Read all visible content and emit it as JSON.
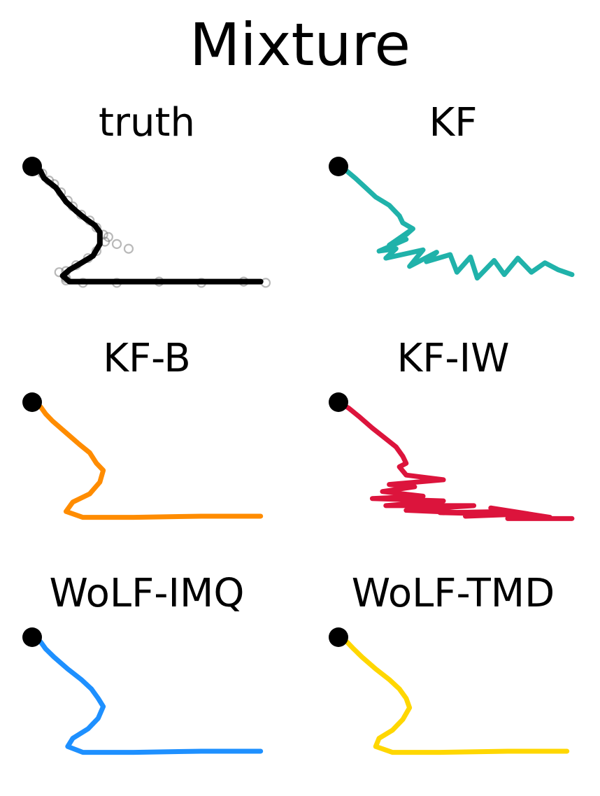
{
  "figure": {
    "title": "Mixture"
  },
  "chart_data": {
    "type": "line",
    "title": "Mixture",
    "axes_visible": false,
    "panels": [
      {
        "title": "truth",
        "color": "#000000",
        "observations_color": "#808080",
        "path": [
          [
            0,
            0
          ],
          [
            0.05,
            -0.04
          ],
          [
            0.07,
            -0.1
          ],
          [
            0.14,
            -0.18
          ],
          [
            0.2,
            -0.3
          ],
          [
            0.26,
            -0.38
          ],
          [
            0.32,
            -0.45
          ],
          [
            0.37,
            -0.5
          ],
          [
            0.4,
            -0.56
          ],
          [
            0.4,
            -0.66
          ],
          [
            0.36,
            -0.76
          ],
          [
            0.28,
            -0.83
          ],
          [
            0.22,
            -0.88
          ],
          [
            0.18,
            -0.93
          ],
          [
            0.22,
            -0.98
          ],
          [
            0.35,
            -0.98
          ],
          [
            0.6,
            -0.98
          ],
          [
            0.9,
            -0.98
          ],
          [
            1.2,
            -0.98
          ],
          [
            1.35,
            -0.98
          ]
        ],
        "observations": [
          [
            0.03,
            -0.02
          ],
          [
            0.06,
            -0.06
          ],
          [
            0.1,
            -0.12
          ],
          [
            0.13,
            -0.15
          ],
          [
            0.17,
            -0.22
          ],
          [
            0.21,
            -0.29
          ],
          [
            0.24,
            -0.34
          ],
          [
            0.29,
            -0.41
          ],
          [
            0.34,
            -0.46
          ],
          [
            0.38,
            -0.52
          ],
          [
            0.42,
            -0.58
          ],
          [
            0.43,
            -0.64
          ],
          [
            0.38,
            -0.72
          ],
          [
            0.33,
            -0.78
          ],
          [
            0.26,
            -0.84
          ],
          [
            0.2,
            -0.89
          ],
          [
            0.2,
            -0.95
          ],
          [
            0.3,
            -0.99
          ],
          [
            0.5,
            -0.99
          ],
          [
            0.75,
            -0.98
          ],
          [
            1.0,
            -0.99
          ],
          [
            1.25,
            -0.98
          ],
          [
            1.38,
            -0.99
          ],
          [
            0.5,
            -0.66
          ],
          [
            0.57,
            -0.7
          ],
          [
            0.16,
            -0.9
          ],
          [
            0.45,
            -0.6
          ],
          [
            0.2,
            -0.97
          ]
        ]
      },
      {
        "title": "KF",
        "color": "#20B2AA",
        "path": [
          [
            0,
            0
          ],
          [
            0.05,
            -0.04
          ],
          [
            0.1,
            -0.1
          ],
          [
            0.16,
            -0.18
          ],
          [
            0.22,
            -0.26
          ],
          [
            0.3,
            -0.33
          ],
          [
            0.36,
            -0.42
          ],
          [
            0.38,
            -0.48
          ],
          [
            0.44,
            -0.53
          ],
          [
            0.4,
            -0.58
          ],
          [
            0.42,
            -0.55
          ],
          [
            0.34,
            -0.63
          ],
          [
            0.3,
            -0.67
          ],
          [
            0.4,
            -0.62
          ],
          [
            0.24,
            -0.72
          ],
          [
            0.34,
            -0.7
          ],
          [
            0.28,
            -0.78
          ],
          [
            0.5,
            -0.71
          ],
          [
            0.42,
            -0.85
          ],
          [
            0.58,
            -0.73
          ],
          [
            0.52,
            -0.81
          ],
          [
            0.66,
            -0.75
          ],
          [
            0.7,
            -0.9
          ],
          [
            0.78,
            -0.77
          ],
          [
            0.82,
            -0.95
          ],
          [
            0.92,
            -0.8
          ],
          [
            0.98,
            -0.92
          ],
          [
            1.06,
            -0.78
          ],
          [
            1.14,
            -0.9
          ],
          [
            1.22,
            -0.82
          ],
          [
            1.3,
            -0.88
          ],
          [
            1.38,
            -0.92
          ]
        ]
      },
      {
        "title": "KF-B",
        "color": "#FF8C00",
        "path": [
          [
            0,
            0
          ],
          [
            0.05,
            -0.04
          ],
          [
            0.08,
            -0.1
          ],
          [
            0.12,
            -0.16
          ],
          [
            0.2,
            -0.26
          ],
          [
            0.28,
            -0.36
          ],
          [
            0.34,
            -0.43
          ],
          [
            0.38,
            -0.52
          ],
          [
            0.42,
            -0.58
          ],
          [
            0.4,
            -0.68
          ],
          [
            0.34,
            -0.78
          ],
          [
            0.24,
            -0.85
          ],
          [
            0.2,
            -0.93
          ],
          [
            0.3,
            -0.98
          ],
          [
            0.6,
            -0.98
          ],
          [
            1.0,
            -0.97
          ],
          [
            1.35,
            -0.97
          ]
        ]
      },
      {
        "title": "KF-IW",
        "color": "#DC143C",
        "path": [
          [
            0,
            0
          ],
          [
            0.06,
            -0.05
          ],
          [
            0.12,
            -0.12
          ],
          [
            0.2,
            -0.22
          ],
          [
            0.27,
            -0.3
          ],
          [
            0.34,
            -0.38
          ],
          [
            0.38,
            -0.46
          ],
          [
            0.4,
            -0.52
          ],
          [
            0.36,
            -0.55
          ],
          [
            0.4,
            -0.62
          ],
          [
            0.62,
            -0.66
          ],
          [
            0.3,
            -0.7
          ],
          [
            0.45,
            -0.72
          ],
          [
            0.26,
            -0.76
          ],
          [
            0.5,
            -0.8
          ],
          [
            0.2,
            -0.82
          ],
          [
            0.62,
            -0.84
          ],
          [
            0.28,
            -0.88
          ],
          [
            0.8,
            -0.88
          ],
          [
            0.4,
            -0.92
          ],
          [
            0.9,
            -0.95
          ],
          [
            0.6,
            -0.94
          ],
          [
            1.0,
            -0.93
          ],
          [
            0.75,
            -0.97
          ],
          [
            1.12,
            -0.95
          ],
          [
            0.9,
            -0.9
          ],
          [
            1.25,
            -0.98
          ],
          [
            1.0,
            -0.99
          ],
          [
            1.38,
            -0.99
          ]
        ]
      },
      {
        "title": "WoLF-IMQ",
        "color": "#1E90FF",
        "path": [
          [
            0,
            0
          ],
          [
            0.05,
            -0.04
          ],
          [
            0.08,
            -0.1
          ],
          [
            0.13,
            -0.17
          ],
          [
            0.21,
            -0.27
          ],
          [
            0.29,
            -0.36
          ],
          [
            0.35,
            -0.44
          ],
          [
            0.39,
            -0.52
          ],
          [
            0.42,
            -0.59
          ],
          [
            0.39,
            -0.69
          ],
          [
            0.33,
            -0.78
          ],
          [
            0.24,
            -0.86
          ],
          [
            0.21,
            -0.93
          ],
          [
            0.3,
            -0.98
          ],
          [
            0.6,
            -0.98
          ],
          [
            1.0,
            -0.97
          ],
          [
            1.35,
            -0.97
          ]
        ]
      },
      {
        "title": "WoLF-TMD",
        "color": "#FFD700",
        "path": [
          [
            0,
            0
          ],
          [
            0.05,
            -0.04
          ],
          [
            0.09,
            -0.1
          ],
          [
            0.14,
            -0.17
          ],
          [
            0.22,
            -0.27
          ],
          [
            0.3,
            -0.36
          ],
          [
            0.36,
            -0.44
          ],
          [
            0.4,
            -0.52
          ],
          [
            0.42,
            -0.6
          ],
          [
            0.38,
            -0.7
          ],
          [
            0.32,
            -0.79
          ],
          [
            0.24,
            -0.86
          ],
          [
            0.22,
            -0.93
          ],
          [
            0.32,
            -0.98
          ],
          [
            0.6,
            -0.98
          ],
          [
            1.0,
            -0.97
          ],
          [
            1.35,
            -0.97
          ]
        ]
      }
    ]
  }
}
